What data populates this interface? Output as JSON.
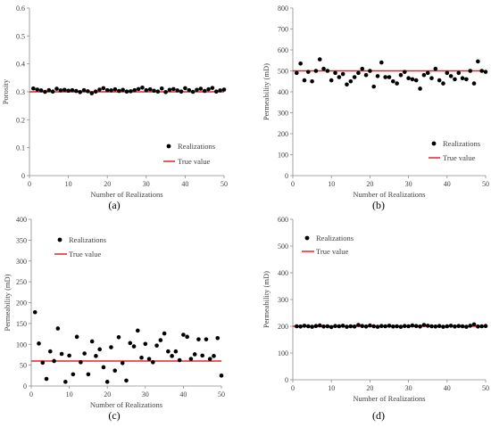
{
  "chart_data": [
    {
      "panel": "(a)",
      "type": "scatter",
      "title": "",
      "xlabel": "Number of Realizations",
      "ylabel": "Porosity",
      "xlim": [
        0,
        50
      ],
      "ylim": [
        0,
        0.6
      ],
      "xticks": [
        0,
        10,
        20,
        30,
        40,
        50
      ],
      "yticks": [
        0,
        0.1,
        0.2,
        0.3,
        0.4,
        0.5,
        0.6
      ],
      "ytick_labels": [
        "0",
        "0.1",
        "0.2",
        "0.3",
        "0.4",
        "0.5",
        "0.6"
      ],
      "grid": false,
      "legend_position": "bottom-right",
      "series": [
        {
          "name": "Realizations",
          "kind": "markers",
          "color": "#000000",
          "x": [
            1,
            2,
            3,
            4,
            5,
            6,
            7,
            8,
            9,
            10,
            11,
            12,
            13,
            14,
            15,
            16,
            17,
            18,
            19,
            20,
            21,
            22,
            23,
            24,
            25,
            26,
            27,
            28,
            29,
            30,
            31,
            32,
            33,
            34,
            35,
            36,
            37,
            38,
            39,
            40,
            41,
            42,
            43,
            44,
            45,
            46,
            47,
            48,
            49,
            50
          ],
          "y": [
            0.312,
            0.308,
            0.305,
            0.3,
            0.306,
            0.301,
            0.311,
            0.305,
            0.307,
            0.304,
            0.306,
            0.303,
            0.299,
            0.306,
            0.302,
            0.295,
            0.301,
            0.308,
            0.313,
            0.306,
            0.305,
            0.309,
            0.303,
            0.307,
            0.301,
            0.302,
            0.306,
            0.31,
            0.315,
            0.306,
            0.309,
            0.304,
            0.301,
            0.312,
            0.299,
            0.307,
            0.31,
            0.305,
            0.301,
            0.313,
            0.306,
            0.3,
            0.307,
            0.311,
            0.303,
            0.309,
            0.314,
            0.301,
            0.305,
            0.308
          ]
        },
        {
          "name": "True value",
          "kind": "line",
          "color": "#e8202a",
          "x": [
            0,
            50
          ],
          "y": [
            0.3,
            0.3
          ]
        }
      ]
    },
    {
      "panel": "(b)",
      "type": "scatter",
      "title": "",
      "xlabel": "Number of Realizations",
      "ylabel": "Permeability (mD)",
      "xlim": [
        0,
        50
      ],
      "ylim": [
        0,
        800
      ],
      "xticks": [
        0,
        10,
        20,
        30,
        40,
        50
      ],
      "yticks": [
        0,
        100,
        200,
        300,
        400,
        500,
        600,
        700,
        800
      ],
      "ytick_labels": [
        "0",
        "100",
        "200",
        "300",
        "400",
        "500",
        "600",
        "700",
        "800"
      ],
      "grid": false,
      "legend_position": "bottom-right",
      "series": [
        {
          "name": "Realizations",
          "kind": "markers",
          "color": "#000000",
          "x": [
            1,
            2,
            3,
            4,
            5,
            6,
            7,
            8,
            9,
            10,
            11,
            12,
            13,
            14,
            15,
            16,
            17,
            18,
            19,
            20,
            21,
            22,
            23,
            24,
            25,
            26,
            27,
            28,
            29,
            30,
            31,
            32,
            33,
            34,
            35,
            36,
            37,
            38,
            39,
            40,
            41,
            42,
            43,
            44,
            45,
            46,
            47,
            48,
            49,
            50
          ],
          "y": [
            490,
            535,
            455,
            495,
            450,
            500,
            555,
            510,
            500,
            455,
            490,
            470,
            485,
            435,
            450,
            470,
            490,
            510,
            480,
            500,
            425,
            475,
            540,
            470,
            470,
            450,
            440,
            480,
            495,
            465,
            460,
            455,
            415,
            480,
            490,
            465,
            510,
            455,
            440,
            490,
            475,
            460,
            490,
            465,
            460,
            500,
            440,
            545,
            500,
            495
          ]
        },
        {
          "name": "True value",
          "kind": "line",
          "color": "#e8202a",
          "x": [
            0,
            50
          ],
          "y": [
            500,
            500
          ]
        }
      ]
    },
    {
      "panel": "(c)",
      "type": "scatter",
      "title": "",
      "xlabel": "Number of Realizations",
      "ylabel": "Permeability (mD)",
      "xlim": [
        0,
        50
      ],
      "ylim": [
        0,
        400
      ],
      "xticks": [
        0,
        10,
        20,
        30,
        40,
        50
      ],
      "yticks": [
        0,
        50,
        100,
        150,
        200,
        250,
        300,
        350,
        400
      ],
      "ytick_labels": [
        "0",
        "50",
        "100",
        "150",
        "200",
        "250",
        "300",
        "350",
        "400"
      ],
      "grid": false,
      "legend_position": "top-left",
      "series": [
        {
          "name": "Realizations",
          "kind": "markers",
          "color": "#000000",
          "x": [
            1,
            2,
            3,
            4,
            5,
            6,
            7,
            8,
            9,
            10,
            11,
            12,
            13,
            14,
            15,
            16,
            17,
            18,
            19,
            20,
            21,
            22,
            23,
            24,
            25,
            26,
            27,
            28,
            29,
            30,
            31,
            32,
            33,
            34,
            35,
            36,
            37,
            38,
            39,
            40,
            41,
            42,
            43,
            44,
            45,
            46,
            47,
            48,
            49,
            50
          ],
          "y": [
            177,
            102,
            56,
            17,
            83,
            60,
            138,
            77,
            10,
            73,
            28,
            118,
            57,
            78,
            28,
            107,
            72,
            88,
            45,
            10,
            93,
            37,
            117,
            55,
            13,
            103,
            95,
            133,
            68,
            101,
            65,
            57,
            97,
            110,
            126,
            83,
            72,
            83,
            62,
            123,
            118,
            65,
            76,
            112,
            73,
            112,
            65,
            72,
            115,
            25
          ]
        },
        {
          "name": "True value",
          "kind": "line",
          "color": "#e8202a",
          "x": [
            0,
            50
          ],
          "y": [
            60,
            60
          ]
        }
      ]
    },
    {
      "panel": "(d)",
      "type": "scatter",
      "title": "",
      "xlabel": "Number of Realizations",
      "ylabel": "Permeability (mD)",
      "xlim": [
        0,
        50
      ],
      "ylim": [
        0,
        600
      ],
      "xticks": [
        0,
        10,
        20,
        30,
        40,
        50
      ],
      "yticks": [
        0,
        100,
        200,
        300,
        400,
        500,
        600
      ],
      "ytick_labels": [
        "0",
        "100",
        "200",
        "300",
        "400",
        "500",
        "600"
      ],
      "grid": false,
      "legend_position": "top-left",
      "series": [
        {
          "name": "Realizations",
          "kind": "markers",
          "color": "#000000",
          "x": [
            1,
            2,
            3,
            4,
            5,
            6,
            7,
            8,
            9,
            10,
            11,
            12,
            13,
            14,
            15,
            16,
            17,
            18,
            19,
            20,
            21,
            22,
            23,
            24,
            25,
            26,
            27,
            28,
            29,
            30,
            31,
            32,
            33,
            34,
            35,
            36,
            37,
            38,
            39,
            40,
            41,
            42,
            43,
            44,
            45,
            46,
            47,
            48,
            49,
            50
          ],
          "y": [
            200,
            199,
            202,
            200,
            198,
            201,
            203,
            199,
            200,
            197,
            201,
            200,
            202,
            198,
            200,
            199,
            205,
            201,
            199,
            203,
            200,
            198,
            201,
            200,
            202,
            199,
            200,
            198,
            201,
            200,
            203,
            201,
            199,
            205,
            202,
            200,
            199,
            201,
            198,
            200,
            202,
            199,
            201,
            200,
            198,
            202,
            207,
            199,
            200,
            201
          ]
        },
        {
          "name": "True value",
          "kind": "line",
          "color": "#e8202a",
          "x": [
            0,
            50
          ],
          "y": [
            200,
            200
          ]
        }
      ]
    }
  ]
}
